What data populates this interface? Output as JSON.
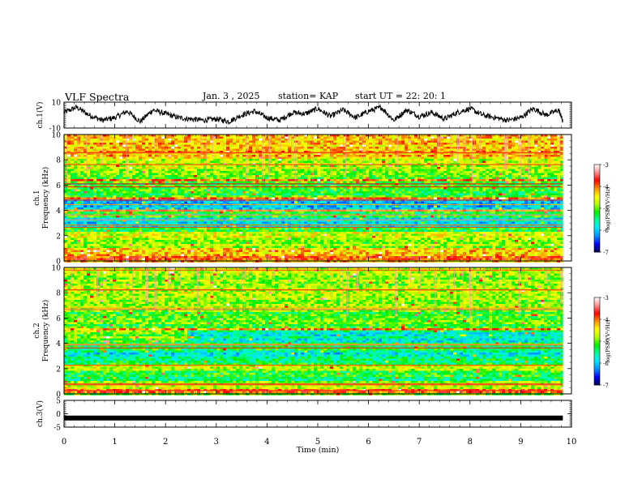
{
  "header": {
    "title": "VLF Spectra",
    "date": "Jan. 3 , 2025",
    "station": "station= KAP",
    "start_ut": "start UT =  22: 20: 1"
  },
  "colors": {
    "colormap": [
      "#00004a",
      "#0000ff",
      "#0090ff",
      "#00e6ff",
      "#00ffa0",
      "#00f000",
      "#b4ff00",
      "#ffff00",
      "#ff9000",
      "#ff0000",
      "#ff9090",
      "#ffffff"
    ]
  },
  "chart_data": [
    {
      "type": "line",
      "name": "ch.1 waveform",
      "ylabel": "ch.1(V)",
      "ylim": [
        -10,
        10
      ],
      "yticks": [
        "10",
        "-10"
      ],
      "xlim": [
        0,
        9.83
      ],
      "x": [
        0,
        0.25,
        0.5,
        0.75,
        1.0,
        1.25,
        1.5,
        1.75,
        2.0,
        2.25,
        2.5,
        2.75,
        3.0,
        3.25,
        3.5,
        3.75,
        4.0,
        4.25,
        4.5,
        4.75,
        5.0,
        5.25,
        5.5,
        5.75,
        6.0,
        6.25,
        6.5,
        6.75,
        7.0,
        7.25,
        7.5,
        7.75,
        8.0,
        8.25,
        8.5,
        8.75,
        9.0,
        9.25,
        9.5,
        9.75,
        9.83
      ],
      "values": [
        2,
        6,
        0,
        -4,
        -2,
        3,
        -5,
        4,
        1,
        -2,
        -3,
        -4,
        -3,
        -5,
        0,
        3,
        -2,
        -4,
        2,
        1,
        5,
        -1,
        4,
        -2,
        3,
        6,
        -4,
        4,
        -1,
        2,
        -3,
        2,
        5,
        0,
        -2,
        -4,
        -2,
        5,
        0,
        4,
        -5
      ]
    },
    {
      "type": "heatmap",
      "name": "ch.1 spectrogram",
      "ylabel": "ch.1\nFrequency (kHz)",
      "ylim": [
        0,
        10
      ],
      "yticks": [
        "0",
        "2",
        "4",
        "6",
        "8",
        "10"
      ],
      "xlim": [
        0,
        9.83
      ],
      "colorbar": {
        "label": "log(PSD)(V²/Hz)",
        "range": [
          -7,
          -3
        ],
        "ticks": [
          "-3",
          "-4",
          "-5",
          "-6",
          "-7"
        ]
      },
      "bands_khz": [
        {
          "f0": 0.0,
          "f1": 0.4,
          "level": -3.8
        },
        {
          "f0": 0.4,
          "f1": 1.0,
          "level": -4.3
        },
        {
          "f0": 1.0,
          "f1": 1.8,
          "level": -4.9
        },
        {
          "f0": 1.8,
          "f1": 2.3,
          "level": -4.5
        },
        {
          "f0": 2.3,
          "f1": 2.7,
          "level": -5.2
        },
        {
          "f0": 2.7,
          "f1": 3.4,
          "level": -5.8
        },
        {
          "f0": 3.4,
          "f1": 3.9,
          "level": -5.3
        },
        {
          "f0": 3.9,
          "f1": 4.1,
          "level": -4.2
        },
        {
          "f0": 4.1,
          "f1": 4.9,
          "level": -6.0
        },
        {
          "f0": 4.9,
          "f1": 5.1,
          "level": -4.0
        },
        {
          "f0": 5.1,
          "f1": 6.3,
          "level": -5.2
        },
        {
          "f0": 6.3,
          "f1": 6.5,
          "level": -3.9
        },
        {
          "f0": 6.5,
          "f1": 7.2,
          "level": -5.0
        },
        {
          "f0": 7.2,
          "f1": 8.0,
          "level": -4.7
        },
        {
          "f0": 8.0,
          "f1": 10.0,
          "level": -4.3
        }
      ]
    },
    {
      "type": "heatmap",
      "name": "ch.2 spectrogram",
      "ylabel": "ch.2\nFrequency (kHz)",
      "ylim": [
        0,
        10
      ],
      "yticks": [
        "0",
        "2",
        "4",
        "6",
        "8",
        "10"
      ],
      "xlim": [
        0,
        9.83
      ],
      "colorbar": {
        "label": "log(PSD)(V²/Hz)",
        "range": [
          -7,
          -3
        ],
        "ticks": [
          "-3",
          "-4",
          "-5",
          "-6",
          "-7"
        ]
      },
      "change_at_min": 2.4,
      "bands_khz": [
        {
          "f0": 0.0,
          "f1": 0.4,
          "level": -4.0
        },
        {
          "f0": 0.4,
          "f1": 1.0,
          "level": -4.8
        },
        {
          "f0": 1.0,
          "f1": 1.8,
          "level": -5.3
        },
        {
          "f0": 1.8,
          "f1": 2.3,
          "level": -4.6
        },
        {
          "f0": 2.3,
          "f1": 3.0,
          "level": -5.4
        },
        {
          "f0": 3.0,
          "f1": 3.5,
          "level": -5.7
        },
        {
          "f0": 3.5,
          "f1": 4.0,
          "level": -5.2
        },
        {
          "f0": 4.0,
          "f1": 5.0,
          "level": -4.9,
          "level_after": -5.7
        },
        {
          "f0": 5.0,
          "f1": 5.2,
          "level": -4.2
        },
        {
          "f0": 5.2,
          "f1": 6.4,
          "level": -5.1
        },
        {
          "f0": 6.4,
          "f1": 7.5,
          "level": -4.9
        },
        {
          "f0": 7.5,
          "f1": 10.0,
          "level": -4.8
        }
      ]
    },
    {
      "type": "line",
      "name": "ch.3 waveform",
      "ylabel": "ch.3(V)",
      "ylim": [
        -5,
        5
      ],
      "yticks": [
        "5",
        "0",
        "-5"
      ],
      "xlim": [
        0,
        9.83
      ],
      "x": [
        0,
        9.83
      ],
      "values": [
        -1.6,
        -1.6
      ]
    }
  ],
  "xaxis": {
    "label": "Time (min)",
    "range": [
      0,
      10
    ],
    "ticks": [
      "0",
      "1",
      "2",
      "3",
      "4",
      "5",
      "6",
      "7",
      "8",
      "9",
      "10"
    ]
  }
}
